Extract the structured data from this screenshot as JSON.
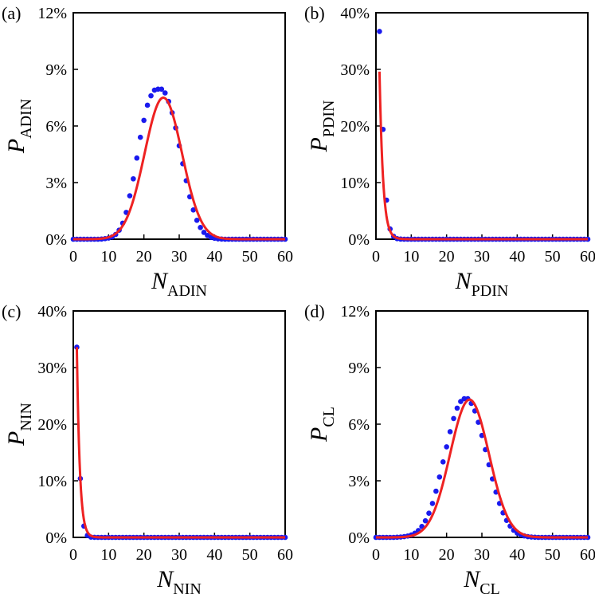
{
  "colors": {
    "points": "#1a1aee",
    "fit": "#ee2222",
    "axis": "#000000"
  },
  "chart_data": [
    {
      "panel": "(a)",
      "type": "scatter",
      "xlabel": {
        "main": "N",
        "sub": "ADIN"
      },
      "ylabel": {
        "main": "P",
        "sub": "ADIN"
      },
      "xlim": [
        0,
        60
      ],
      "ylim": [
        0,
        12
      ],
      "xticks": [
        "0",
        "10",
        "20",
        "30",
        "40",
        "50",
        "60"
      ],
      "yticks": [
        "0%",
        "3%",
        "6%",
        "9%",
        "12%"
      ],
      "series": [
        {
          "name": "data",
          "kind": "points",
          "x": [
            0,
            1,
            2,
            3,
            4,
            5,
            6,
            7,
            8,
            9,
            10,
            11,
            12,
            13,
            14,
            15,
            16,
            17,
            18,
            19,
            20,
            21,
            22,
            23,
            24,
            25,
            26,
            27,
            28,
            29,
            30,
            31,
            32,
            33,
            34,
            35,
            36,
            37,
            38,
            39,
            40,
            41,
            42,
            43,
            44,
            45,
            46,
            47,
            48,
            49,
            50,
            51,
            52,
            53,
            54,
            55,
            56,
            57,
            58,
            59,
            60
          ],
          "y": [
            0,
            0,
            0,
            0,
            0,
            0,
            0,
            0,
            0.01,
            0.03,
            0.06,
            0.12,
            0.25,
            0.48,
            0.85,
            1.42,
            2.3,
            3.2,
            4.3,
            5.4,
            6.3,
            7.1,
            7.6,
            7.9,
            7.95,
            7.95,
            7.75,
            7.3,
            6.7,
            5.9,
            4.95,
            4.0,
            3.1,
            2.25,
            1.55,
            1.0,
            0.62,
            0.36,
            0.2,
            0.1,
            0.05,
            0.02,
            0.01,
            0,
            0,
            0,
            0,
            0,
            0,
            0,
            0,
            0,
            0,
            0,
            0,
            0,
            0,
            0,
            0,
            0,
            0
          ]
        },
        {
          "name": "fit",
          "kind": "line",
          "model": "gaussian",
          "mu": 25.5,
          "sigma": 5.3,
          "amp": 7.5,
          "range": [
            0,
            60
          ]
        }
      ]
    },
    {
      "panel": "(b)",
      "type": "scatter",
      "xlabel": {
        "main": "N",
        "sub": "PDIN"
      },
      "ylabel": {
        "main": "P",
        "sub": "PDIN"
      },
      "xlim": [
        0,
        60
      ],
      "ylim": [
        0,
        40
      ],
      "xticks": [
        "0",
        "10",
        "20",
        "30",
        "40",
        "50",
        "60"
      ],
      "yticks": [
        "0%",
        "10%",
        "20%",
        "30%",
        "40%"
      ],
      "series": [
        {
          "name": "data",
          "kind": "points",
          "x": [
            1,
            2,
            3,
            4,
            5,
            6,
            7,
            8,
            9,
            10,
            11,
            12,
            13,
            14,
            15,
            16,
            17,
            18,
            19,
            20,
            21,
            22,
            23,
            24,
            25,
            26,
            27,
            28,
            29,
            30,
            31,
            32,
            33,
            34,
            35,
            36,
            37,
            38,
            39,
            40,
            41,
            42,
            43,
            44,
            45,
            46,
            47,
            48,
            49,
            50,
            51,
            52,
            53,
            54,
            55,
            56,
            57,
            58,
            59,
            60
          ],
          "y": [
            36.7,
            19.4,
            6.9,
            1.8,
            0.5,
            0.1,
            0.02,
            0,
            0,
            0,
            0,
            0,
            0,
            0,
            0,
            0,
            0,
            0,
            0,
            0,
            0,
            0,
            0,
            0,
            0,
            0,
            0,
            0,
            0,
            0,
            0,
            0,
            0,
            0,
            0,
            0,
            0,
            0,
            0,
            0,
            0,
            0,
            0,
            0,
            0,
            0,
            0,
            0,
            0,
            0,
            0,
            0,
            0,
            0,
            0,
            0,
            0,
            0,
            0,
            0
          ]
        },
        {
          "name": "fit",
          "kind": "line",
          "model": "exponential",
          "a": 29.6,
          "k": 1.0,
          "x0": 1,
          "range": [
            1,
            60
          ]
        }
      ]
    },
    {
      "panel": "(c)",
      "type": "scatter",
      "xlabel": {
        "main": "N",
        "sub": "NIN"
      },
      "ylabel": {
        "main": "P",
        "sub": "NIN"
      },
      "xlim": [
        0,
        60
      ],
      "ylim": [
        0,
        40
      ],
      "xticks": [
        "0",
        "10",
        "20",
        "30",
        "40",
        "50",
        "60"
      ],
      "yticks": [
        "0%",
        "10%",
        "20%",
        "30%",
        "40%"
      ],
      "series": [
        {
          "name": "data",
          "kind": "points",
          "x": [
            1,
            2,
            3,
            4,
            5,
            6,
            7,
            8,
            9,
            10,
            11,
            12,
            13,
            14,
            15,
            16,
            17,
            18,
            19,
            20,
            21,
            22,
            23,
            24,
            25,
            26,
            27,
            28,
            29,
            30,
            31,
            32,
            33,
            34,
            35,
            36,
            37,
            38,
            39,
            40,
            41,
            42,
            43,
            44,
            45,
            46,
            47,
            48,
            49,
            50,
            51,
            52,
            53,
            54,
            55,
            56,
            57,
            58,
            59,
            60
          ],
          "y": [
            33.6,
            10.4,
            2.0,
            0.35,
            0.05,
            0.01,
            0,
            0,
            0,
            0,
            0,
            0,
            0,
            0,
            0,
            0,
            0,
            0,
            0,
            0,
            0,
            0,
            0,
            0,
            0,
            0,
            0,
            0,
            0,
            0,
            0,
            0,
            0,
            0,
            0,
            0,
            0,
            0,
            0,
            0,
            0,
            0,
            0,
            0,
            0,
            0,
            0,
            0,
            0,
            0,
            0,
            0,
            0,
            0,
            0,
            0,
            0,
            0,
            0,
            0
          ]
        },
        {
          "name": "fit",
          "kind": "line",
          "model": "exponential",
          "a": 33.6,
          "k": 1.18,
          "x0": 1,
          "range": [
            1,
            60
          ]
        }
      ]
    },
    {
      "panel": "(d)",
      "type": "scatter",
      "xlabel": {
        "main": "N",
        "sub": "CL"
      },
      "ylabel": {
        "main": "P",
        "sub": "CL"
      },
      "xlim": [
        0,
        60
      ],
      "ylim": [
        0,
        12
      ],
      "xticks": [
        "0",
        "10",
        "20",
        "30",
        "40",
        "50",
        "60"
      ],
      "yticks": [
        "0%",
        "3%",
        "6%",
        "9%",
        "12%"
      ],
      "series": [
        {
          "name": "data",
          "kind": "points",
          "x": [
            0,
            1,
            2,
            3,
            4,
            5,
            6,
            7,
            8,
            9,
            10,
            11,
            12,
            13,
            14,
            15,
            16,
            17,
            18,
            19,
            20,
            21,
            22,
            23,
            24,
            25,
            26,
            27,
            28,
            29,
            30,
            31,
            32,
            33,
            34,
            35,
            36,
            37,
            38,
            39,
            40,
            41,
            42,
            43,
            44,
            45,
            46,
            47,
            48,
            49,
            50,
            51,
            52,
            53,
            54,
            55,
            56,
            57,
            58,
            59,
            60
          ],
          "y": [
            0,
            0,
            0,
            0,
            0,
            0,
            0.01,
            0.02,
            0.04,
            0.07,
            0.13,
            0.22,
            0.36,
            0.58,
            0.88,
            1.28,
            1.8,
            2.45,
            3.2,
            4.0,
            4.8,
            5.6,
            6.3,
            6.85,
            7.2,
            7.35,
            7.35,
            7.1,
            6.7,
            6.1,
            5.4,
            4.65,
            3.85,
            3.1,
            2.4,
            1.8,
            1.3,
            0.9,
            0.6,
            0.38,
            0.23,
            0.14,
            0.08,
            0.04,
            0.02,
            0.01,
            0,
            0,
            0,
            0,
            0,
            0,
            0,
            0,
            0,
            0,
            0,
            0,
            0,
            0,
            0
          ]
        },
        {
          "name": "fit",
          "kind": "line",
          "model": "gaussian",
          "mu": 26.5,
          "sigma": 5.5,
          "amp": 7.3,
          "range": [
            0,
            60
          ]
        }
      ]
    }
  ]
}
